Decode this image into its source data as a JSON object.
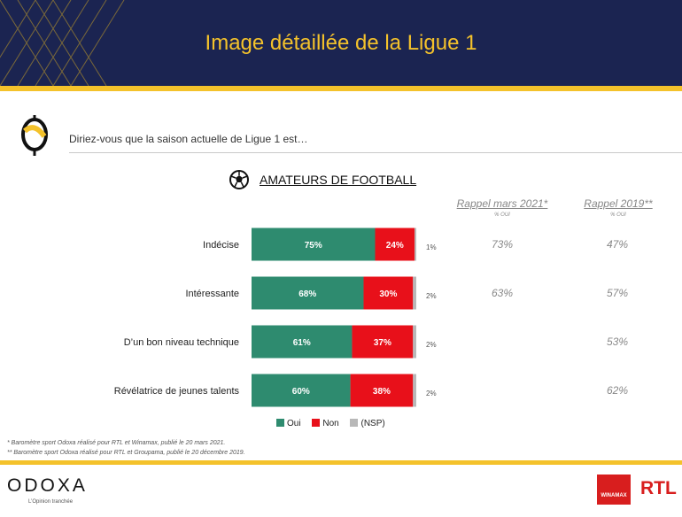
{
  "header": {
    "title": "Image détaillée de la Ligue 1"
  },
  "question": "Diriez-vous que la saison actuelle de Ligue 1 est…",
  "section_title": "AMATEURS DE FOOTBALL",
  "recall_columns": [
    {
      "title": "Rappel mars 2021*",
      "subtitle": "% OUI"
    },
    {
      "title": "Rappel 2019**",
      "subtitle": "% OUI"
    }
  ],
  "colors": {
    "oui": "#2e8b6f",
    "non": "#e8101a",
    "nsp": "#b8b8b8",
    "navy": "#1b2451",
    "gold": "#f4c22b"
  },
  "chart_data": {
    "type": "bar",
    "stacked": true,
    "orientation": "horizontal",
    "categories": [
      "Indécise",
      "Intéressante",
      "D’un bon niveau technique",
      "Révélatrice de jeunes talents"
    ],
    "series": [
      {
        "name": "Oui",
        "values": [
          75,
          68,
          61,
          60
        ],
        "labels": [
          "75%",
          "68%",
          "61%",
          "60%"
        ]
      },
      {
        "name": "Non",
        "values": [
          24,
          30,
          37,
          38
        ],
        "labels": [
          "24%",
          "30%",
          "37%",
          "38%"
        ]
      },
      {
        "name": "(NSP)",
        "values": [
          1,
          2,
          2,
          2
        ],
        "labels": [
          "1%",
          "2%",
          "2%",
          "2%"
        ]
      }
    ],
    "recall_mars_2021": [
      "73%",
      "63%",
      "",
      ""
    ],
    "recall_2019": [
      "47%",
      "57%",
      "53%",
      "62%"
    ],
    "legend": [
      "Oui",
      "Non",
      "(NSP)"
    ],
    "legend_position": "bottom"
  },
  "footnotes": [
    "* Baromètre sport Odoxa réalisé pour RTL et Winamax, publié le 20 mars 2021.",
    "** Baromètre sport Odoxa réalisé pour RTL et Groupama, publié le 20 décembre 2019."
  ],
  "footer": {
    "brand": "ODOXA",
    "tagline": "L’Opinion tranchée",
    "partner1": "WINAMAX",
    "partner2": "RTL"
  }
}
